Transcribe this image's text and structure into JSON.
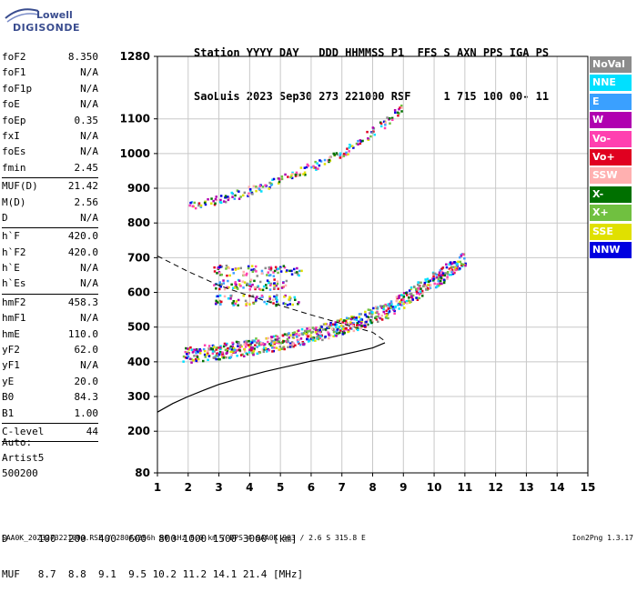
{
  "logo": {
    "line1": "Lowell",
    "line2": "DIGISONDE"
  },
  "header": {
    "line1": "Station YYYY DAY   DDD HHMMSS P1  FFS S AXN PPS IGA PS",
    "line2": "SaoLuis 2023 Sep30 273 221000 RSF     1 715 100 00- 11"
  },
  "params_group1": [
    {
      "k": "foF2",
      "v": "8.350"
    },
    {
      "k": "foF1",
      "v": "N/A"
    },
    {
      "k": "foF1p",
      "v": "N/A"
    },
    {
      "k": "foE",
      "v": "N/A"
    },
    {
      "k": "foEp",
      "v": "0.35"
    },
    {
      "k": "fxI",
      "v": "N/A"
    },
    {
      "k": "foEs",
      "v": "N/A"
    },
    {
      "k": "fmin",
      "v": "2.45"
    }
  ],
  "params_group2": [
    {
      "k": "MUF(D)",
      "v": "21.42"
    },
    {
      "k": "M(D)",
      "v": "2.56"
    },
    {
      "k": "D",
      "v": "N/A"
    }
  ],
  "params_group3": [
    {
      "k": "h`F",
      "v": "420.0"
    },
    {
      "k": "h`F2",
      "v": "420.0"
    },
    {
      "k": "h`E",
      "v": "N/A"
    },
    {
      "k": "h`Es",
      "v": "N/A"
    }
  ],
  "params_group4": [
    {
      "k": "hmF2",
      "v": "458.3"
    },
    {
      "k": "hmF1",
      "v": "N/A"
    },
    {
      "k": "hmE",
      "v": "110.0"
    },
    {
      "k": "yF2",
      "v": "62.0"
    },
    {
      "k": "yF1",
      "v": "N/A"
    },
    {
      "k": "yE",
      "v": "20.0"
    },
    {
      "k": "B0",
      "v": "84.3"
    },
    {
      "k": "B1",
      "v": "1.00"
    }
  ],
  "clevel": {
    "k": "C-level",
    "v": "44"
  },
  "auto": {
    "l1": "Auto:",
    "l2": "Artist5",
    "l3": "500200"
  },
  "footer": {
    "d_row": "D     100  200  400  600  800 1000 1500 3000 [km]",
    "muf_row": "MUF   8.7  8.8  9.1  9.5 10.2 11.2 14.1 21.4 [MHz]",
    "file": "SAA0K_2023273221000.RSF / 280fx256h 50 kHz 5.0 km / DPS-4 SAA0K 903 / 2.6 S 315.8 E",
    "version": "Ion2Png 1.3.17"
  },
  "legend": [
    {
      "label": "NoVal",
      "color": "#8c8c8c"
    },
    {
      "label": "NNE",
      "color": "#00e0ff"
    },
    {
      "label": "E",
      "color": "#3aa0ff"
    },
    {
      "label": "W",
      "color": "#b000b0"
    },
    {
      "label": "Vo-",
      "color": "#ff40b0"
    },
    {
      "label": "Vo+",
      "color": "#e00020"
    },
    {
      "label": "SSW",
      "color": "#ffb0b0"
    },
    {
      "label": "X-",
      "color": "#007000"
    },
    {
      "label": "X+",
      "color": "#70c040"
    },
    {
      "label": "SSE",
      "color": "#e0e000"
    },
    {
      "label": "NNW",
      "color": "#0000e0"
    }
  ],
  "chart_data": {
    "type": "scatter",
    "xlabel": "",
    "ylabel": "",
    "xlim": [
      1,
      15
    ],
    "ylim": [
      80,
      1280
    ],
    "x_ticks": [
      "1",
      "2",
      "3",
      "4",
      "5",
      "6",
      "7",
      "8",
      "9",
      "10",
      "11",
      "12",
      "13",
      "14",
      "15"
    ],
    "y_ticks": [
      {
        "v": 80,
        "t": "80"
      },
      {
        "v": 200,
        "t": "200"
      },
      {
        "v": 300,
        "t": "300"
      },
      {
        "v": 400,
        "t": "400"
      },
      {
        "v": 500,
        "t": "500"
      },
      {
        "v": 600,
        "t": "600"
      },
      {
        "v": 700,
        "t": "700"
      },
      {
        "v": 800,
        "t": "800"
      },
      {
        "v": 900,
        "t": "900"
      },
      {
        "v": 1000,
        "t": "1000"
      },
      {
        "v": 1100,
        "t": "1100"
      },
      {
        "v": 1280,
        "t": "1280"
      }
    ],
    "grid": true,
    "profile": [
      [
        1.0,
        255
      ],
      [
        1.5,
        280
      ],
      [
        2.0,
        300
      ],
      [
        2.5,
        318
      ],
      [
        3.0,
        335
      ],
      [
        3.5,
        348
      ],
      [
        4.0,
        360
      ],
      [
        4.5,
        372
      ],
      [
        5.0,
        382
      ],
      [
        5.5,
        392
      ],
      [
        6.0,
        402
      ],
      [
        6.5,
        410
      ],
      [
        7.0,
        420
      ],
      [
        7.5,
        430
      ],
      [
        8.0,
        440
      ],
      [
        8.4,
        455
      ]
    ],
    "extrapolation": [
      [
        1.0,
        705
      ],
      [
        2.0,
        660
      ],
      [
        3.0,
        620
      ],
      [
        4.0,
        590
      ],
      [
        5.0,
        562
      ],
      [
        6.0,
        535
      ],
      [
        7.0,
        510
      ],
      [
        8.0,
        485
      ],
      [
        8.4,
        460
      ]
    ],
    "traces": [
      {
        "name": "F2 O-trace",
        "points": [
          [
            1.8,
            420
          ],
          [
            2.5,
            428
          ],
          [
            3.0,
            432
          ],
          [
            3.5,
            438
          ],
          [
            4.0,
            445
          ],
          [
            4.5,
            452
          ],
          [
            5.0,
            460
          ],
          [
            5.5,
            470
          ],
          [
            6.0,
            480
          ],
          [
            6.5,
            492
          ],
          [
            7.0,
            505
          ],
          [
            7.5,
            520
          ],
          [
            8.0,
            535
          ],
          [
            8.5,
            555
          ],
          [
            9.0,
            580
          ],
          [
            9.5,
            610
          ],
          [
            10.0,
            640
          ],
          [
            10.5,
            670
          ],
          [
            11.0,
            700
          ]
        ]
      },
      {
        "name": "F2 second hop",
        "points": [
          [
            2.0,
            850
          ],
          [
            2.5,
            860
          ],
          [
            3.0,
            870
          ],
          [
            3.5,
            882
          ],
          [
            4.0,
            895
          ],
          [
            4.5,
            910
          ],
          [
            5.0,
            925
          ],
          [
            5.5,
            945
          ],
          [
            6.0,
            965
          ],
          [
            6.5,
            985
          ],
          [
            7.0,
            1005
          ],
          [
            7.5,
            1035
          ],
          [
            8.0,
            1065
          ],
          [
            8.5,
            1100
          ],
          [
            9.0,
            1140
          ]
        ]
      },
      {
        "name": "multipath",
        "points": [
          [
            2.8,
            580
          ],
          [
            3.5,
            585
          ],
          [
            4.5,
            590
          ],
          [
            5.5,
            600
          ],
          [
            2.8,
            625
          ],
          [
            4.0,
            630
          ],
          [
            5.0,
            640
          ],
          [
            2.8,
            665
          ],
          [
            4.0,
            680
          ],
          [
            5.5,
            690
          ],
          [
            7.5,
            525
          ],
          [
            8.5,
            520
          ]
        ]
      }
    ]
  }
}
